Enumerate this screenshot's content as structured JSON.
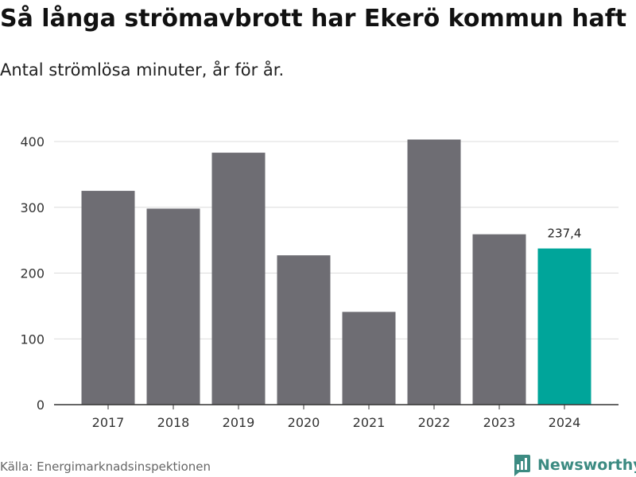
{
  "header": {
    "title": "Så långa strömavbrott har Ekerö kommun haft",
    "subtitle": "Antal strömlösa minuter, år för år."
  },
  "footer": {
    "source": "Källa: Energimarknadsinspektionen",
    "brand": "Newsworthy",
    "brand_icon": "newsworthy-logo-icon"
  },
  "colors": {
    "bar": "#6e6d73",
    "highlight": "#00a59a",
    "grid": "#dcdcdc",
    "brand": "#3c8b82"
  },
  "chart_data": {
    "type": "bar",
    "categories": [
      "2017",
      "2018",
      "2019",
      "2020",
      "2021",
      "2022",
      "2023",
      "2024"
    ],
    "values": [
      325,
      298,
      383,
      227,
      141,
      403,
      259,
      237.4
    ],
    "ylim": [
      0,
      400
    ],
    "yticks": [
      0,
      100,
      200,
      300,
      400
    ],
    "grid": true,
    "highlight_index": 7,
    "data_labels": [
      {
        "index": 7,
        "text": "237,4"
      }
    ]
  }
}
